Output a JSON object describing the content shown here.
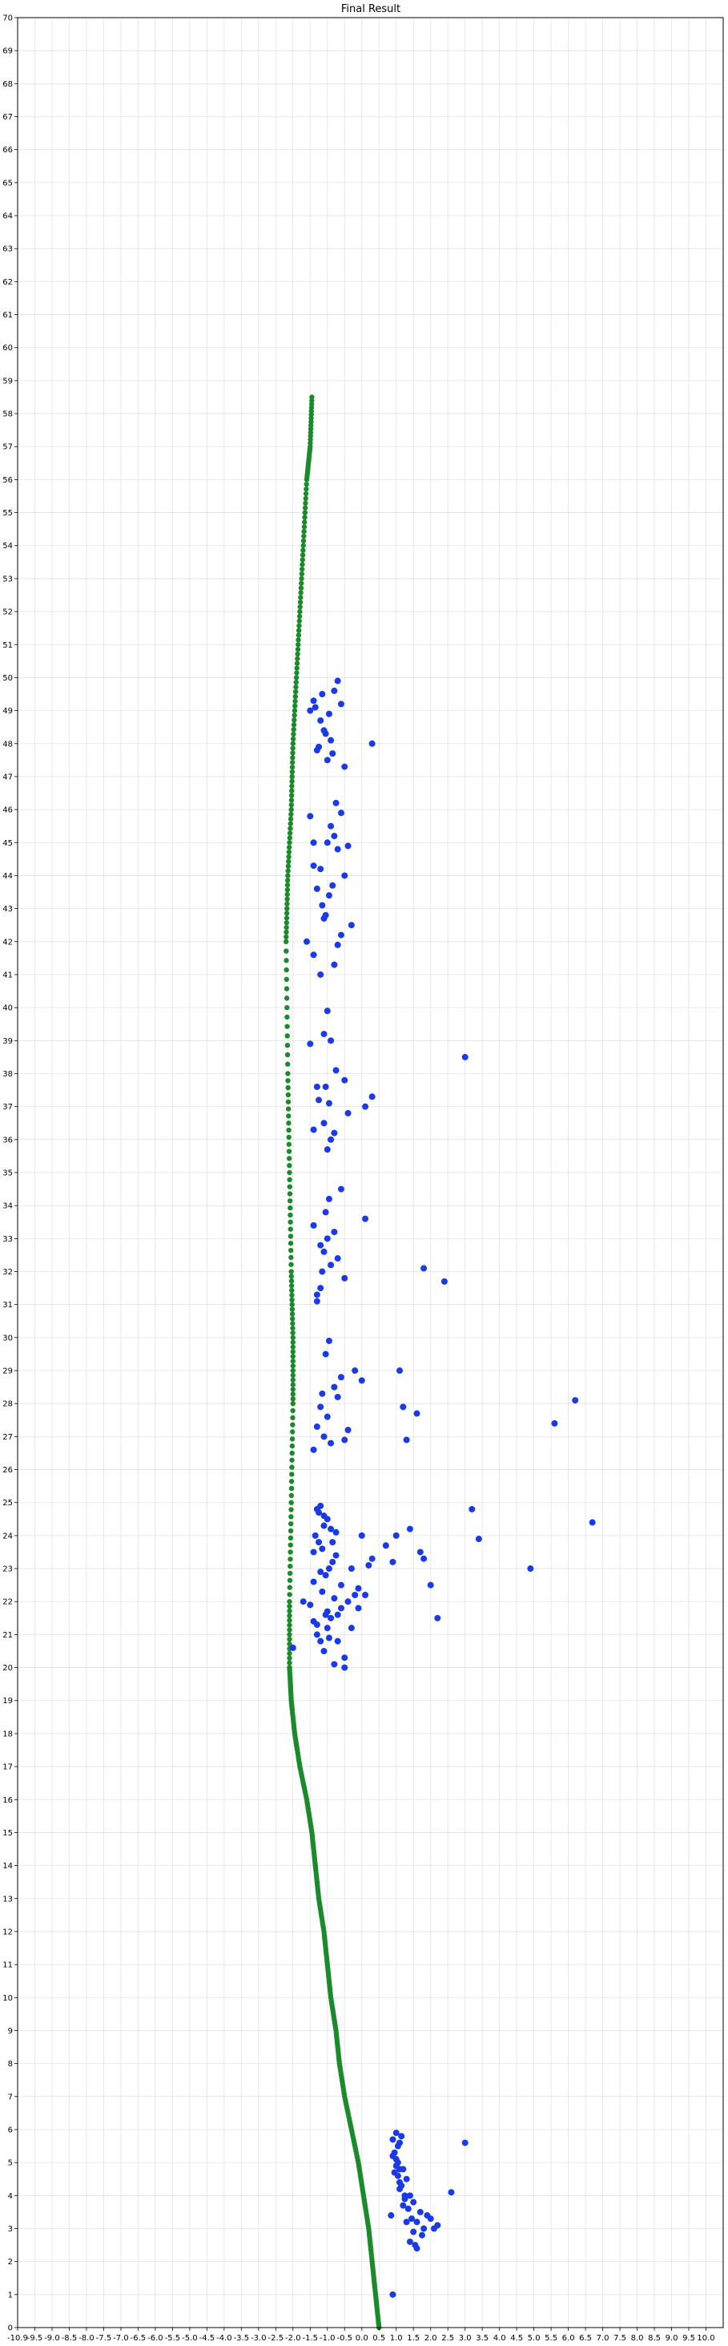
{
  "chart_data": {
    "type": "scatter",
    "title": "Final Result",
    "xlabel": "",
    "ylabel": "",
    "xlim": [
      -10.5,
      10.0
    ],
    "ylim": [
      0,
      70
    ],
    "x_tick_labels": [
      "-10.9",
      "-9.5",
      "-9.0",
      "-8.5",
      "-8.0",
      "-7.5",
      "-7.0",
      "-6.5",
      "-6.0",
      "-5.5",
      "-5.0",
      "-4.5",
      "-4.0",
      "-3.5",
      "-3.0",
      "-2.5",
      "-2.0",
      "-1.5",
      "-1.0",
      "-0.5",
      "0.0",
      "0.5",
      "1.0",
      "1.5",
      "2.0",
      "2.5",
      "3.0",
      "3.5",
      "4.0",
      "4.5",
      "5.0",
      "5.5",
      "6.0",
      "6.5",
      "7.0",
      "7.5",
      "8.0",
      "8.5",
      "9.0",
      "9.5",
      "10.0"
    ],
    "y_ticks": [
      0,
      1,
      2,
      3,
      4,
      5,
      6,
      7,
      8,
      9,
      10,
      11,
      12,
      13,
      14,
      15,
      16,
      17,
      18,
      19,
      20,
      21,
      22,
      23,
      24,
      25,
      26,
      27,
      28,
      29,
      30,
      31,
      32,
      33,
      34,
      35,
      36,
      37,
      38,
      39,
      40,
      41,
      42,
      43,
      44,
      45,
      46,
      47,
      48,
      49,
      50,
      51,
      52,
      53,
      54,
      55,
      56,
      57,
      58,
      59,
      60,
      61,
      62,
      63,
      64,
      65,
      66,
      67,
      68,
      69,
      70
    ],
    "grid": true,
    "colors": {
      "trajectory": "#1a8a2a",
      "landmarks": "#1a3ae8"
    },
    "series": [
      {
        "marker": "line",
        "x": [
          0.0,
          -0.1,
          -0.2,
          -0.3,
          -0.45,
          -0.6,
          -0.8,
          -1.0,
          -1.15,
          -1.25,
          -1.4,
          -1.5,
          -1.6,
          -1.75,
          -1.85,
          -1.95,
          -2.1,
          -2.3,
          -2.45,
          -2.55,
          -2.6,
          -2.6,
          -2.55,
          -2.5,
          -2.5,
          -2.55,
          -2.6,
          -2.65,
          -2.7,
          -2.65,
          -2.55,
          -2.5,
          -2.4,
          -2.3,
          -2.2,
          -2.1,
          -2.0,
          -1.95
        ],
        "y": [
          0,
          1,
          2,
          3,
          4,
          5,
          6,
          7,
          8,
          9,
          10,
          11,
          12,
          13,
          14,
          15,
          16,
          17,
          18,
          19,
          20,
          22,
          25,
          28,
          30,
          32,
          35,
          38,
          42,
          44,
          46,
          48,
          50,
          52,
          54,
          56,
          57,
          58.5
        ]
      },
      {
        "marker": "point",
        "x": [
          0.4,
          0.5,
          0.6,
          0.45,
          0.55,
          0.7,
          0.8,
          0.6,
          0.9,
          1.0,
          1.2,
          1.1,
          0.5,
          0.65,
          0.75,
          0.85,
          1.3,
          1.5,
          1.7,
          2.1,
          2.5,
          0.4,
          0.55,
          0.35,
          0.6,
          0.7,
          1.0,
          0.5,
          0.45,
          0.8,
          1.4,
          1.6,
          0.9,
          1.1,
          0.55,
          0.65,
          0.4,
          0.75,
          0.95,
          1.25,
          1.05,
          0.6,
          -1.0,
          -1.3,
          -1.6,
          -1.7,
          -1.8,
          -1.5,
          -1.4,
          -1.2,
          -1.1,
          -0.9,
          -0.7,
          -0.6,
          -1.9,
          -2.0,
          -1.55,
          -1.45,
          -1.35,
          -1.25,
          -1.65,
          -1.75,
          -1.85,
          -0.8,
          -0.3,
          0.4,
          0.5,
          1.3,
          1.5,
          1.7,
          2.7,
          2.9,
          0.9,
          1.2,
          0.2,
          -0.5,
          -0.2,
          -1.4,
          -1.5,
          -1.8,
          -1.7,
          -1.6,
          -1.9,
          4.4,
          6.2,
          -2.5,
          -1.0,
          -1.2,
          -1.8,
          -1.5,
          -1.3,
          -1.1,
          -1.7,
          -1.9,
          -1.6,
          -0.4,
          -0.6,
          -0.8,
          -1.45,
          -1.55,
          -1.65,
          -1.35,
          -1.25,
          -2.2,
          -1.75,
          0.7,
          0.8,
          0.6,
          5.1,
          5.7,
          -1.4,
          -1.6,
          -1.8,
          -1.5,
          -1.7,
          -1.2,
          -1.3,
          -1.1,
          -0.5,
          -0.7,
          -0.9,
          -1.0,
          -1.9,
          -1.55,
          -1.45,
          -1.65,
          1.1,
          1.3,
          1.9,
          -1.8,
          -1.4,
          -1.2,
          -1.6,
          -1.7,
          -1.5,
          -1.3,
          -1.9,
          -0.4,
          -1.55,
          -1.65,
          -1.45,
          -1.1,
          -1.0,
          -1.7,
          -1.8,
          -1.5,
          -1.4,
          -1.3,
          -1.6,
          -0.9,
          -0.4,
          -0.2,
          -1.55,
          -1.75,
          -1.45,
          -1.25,
          -1.9,
          -1.0,
          2.5,
          -2.0,
          -1.6,
          -1.5,
          -1.8,
          -1.4,
          -1.7,
          -1.3,
          -1.9,
          -1.2,
          -1.1,
          -0.8,
          -1.55,
          -1.65,
          -1.45,
          -1.35,
          -1.0,
          -1.9,
          -2.1,
          -1.8,
          -1.7,
          -1.6,
          -1.5,
          -1.4,
          -1.3,
          -2.0,
          -1.9,
          -1.2,
          -1.1,
          -0.9,
          -1.0,
          -1.5,
          -1.8,
          -1.4,
          -1.6,
          -1.7,
          -2.0,
          -1.9,
          -1.3,
          -1.2,
          -1.1,
          -0.2,
          -1.75,
          -1.55,
          -1.45,
          -1.65,
          -1.35,
          -1.85,
          -1.25
        ],
        "y": [
          1.0,
          5.9,
          5.6,
          5.3,
          5.0,
          4.8,
          4.5,
          4.2,
          4.0,
          3.8,
          3.5,
          3.2,
          4.9,
          4.3,
          3.9,
          3.6,
          3.0,
          3.3,
          3.1,
          4.1,
          5.6,
          5.7,
          4.6,
          3.4,
          4.4,
          3.7,
          2.9,
          5.1,
          4.7,
          3.2,
          3.4,
          3.0,
          2.6,
          2.4,
          5.5,
          5.8,
          5.2,
          4.0,
          3.3,
          2.8,
          2.5,
          4.8,
          20.0,
          20.1,
          20.5,
          20.8,
          21.0,
          21.2,
          21.5,
          21.6,
          21.8,
          22.0,
          22.2,
          22.4,
          22.6,
          21.9,
          22.8,
          23.0,
          23.2,
          23.4,
          23.6,
          23.8,
          24.0,
          23.0,
          23.1,
          23.2,
          24.0,
          23.3,
          22.5,
          21.5,
          24.8,
          23.9,
          24.2,
          23.5,
          23.7,
          24.0,
          23.3,
          24.2,
          24.5,
          24.8,
          24.9,
          24.3,
          21.4,
          23.0,
          24.4,
          20.6,
          20.3,
          20.8,
          21.3,
          21.7,
          22.1,
          22.5,
          22.9,
          23.5,
          24.6,
          22.2,
          21.8,
          21.2,
          20.9,
          21.6,
          22.3,
          23.8,
          24.1,
          22.0,
          24.7,
          27.9,
          26.9,
          29.0,
          27.4,
          28.1,
          26.8,
          27.0,
          27.3,
          27.6,
          27.9,
          28.2,
          28.5,
          28.8,
          28.7,
          29.0,
          27.2,
          26.9,
          26.6,
          29.5,
          29.9,
          28.3,
          27.7,
          32.1,
          31.7,
          31.1,
          32.2,
          32.4,
          32.6,
          32.8,
          33.0,
          33.2,
          33.4,
          33.6,
          33.8,
          32.0,
          34.2,
          34.5,
          31.8,
          31.5,
          31.3,
          35.7,
          36.0,
          36.2,
          36.5,
          36.8,
          37.0,
          37.3,
          37.6,
          37.2,
          37.1,
          38.1,
          36.3,
          37.8,
          38.5,
          38.9,
          39.2,
          39.9,
          37.6,
          39.0,
          41.0,
          41.3,
          41.6,
          41.9,
          42.2,
          42.5,
          42.8,
          43.1,
          43.4,
          43.7,
          44.0,
          44.3,
          42.0,
          43.6,
          44.2,
          42.7,
          45.0,
          45.5,
          45.2,
          45.8,
          45.0,
          44.8,
          45.9,
          44.9,
          47.3,
          47.5,
          47.8,
          48.1,
          48.4,
          48.7,
          49.0,
          49.3,
          49.6,
          49.9,
          49.2,
          48.0,
          47.9,
          48.3,
          48.9,
          49.5,
          47.7,
          49.1,
          46.2
        ]
      }
    ]
  }
}
